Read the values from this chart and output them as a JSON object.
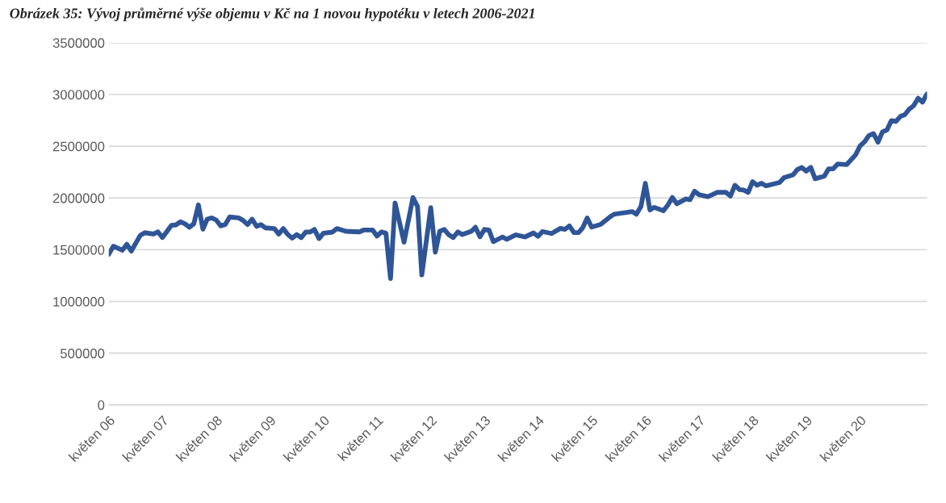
{
  "chart_data": {
    "type": "line",
    "title": "Obrázek 35: Vývoj průměrné výše objemu v Kč na 1 novou hypotéku v letech 2006-2021",
    "x": [
      "2006-05",
      "2006-06",
      "2006-08",
      "2006-09",
      "2006-10",
      "2006-12",
      "2007-01",
      "2007-03",
      "2007-04",
      "2007-05",
      "2007-07",
      "2007-08",
      "2007-09",
      "2007-10",
      "2007-11",
      "2007-12",
      "2008-01",
      "2008-02",
      "2008-03",
      "2008-04",
      "2008-05",
      "2008-06",
      "2008-07",
      "2008-08",
      "2008-10",
      "2008-11",
      "2008-12",
      "2009-01",
      "2009-02",
      "2009-03",
      "2009-04",
      "2009-06",
      "2009-07",
      "2009-08",
      "2009-09",
      "2009-10",
      "2009-11",
      "2009-12",
      "2010-01",
      "2010-02",
      "2010-03",
      "2010-04",
      "2010-05",
      "2010-07",
      "2010-08",
      "2010-09",
      "2010-10",
      "2011-01",
      "2011-02",
      "2011-04",
      "2011-05",
      "2011-06",
      "2011-07",
      "2011-08",
      "2011-09",
      "2011-11",
      "2012-01",
      "2012-02",
      "2012-03",
      "2012-05",
      "2012-06",
      "2012-07",
      "2012-08",
      "2012-09",
      "2012-10",
      "2012-11",
      "2012-12",
      "2013-02",
      "2013-03",
      "2013-04",
      "2013-05",
      "2013-06",
      "2013-07",
      "2013-09",
      "2013-10",
      "2013-12",
      "2014-02",
      "2014-04",
      "2014-05",
      "2014-06",
      "2014-08",
      "2014-10",
      "2014-11",
      "2014-12",
      "2015-01",
      "2015-02",
      "2015-03",
      "2015-04",
      "2015-05",
      "2015-07",
      "2015-09",
      "2015-10",
      "2016-02",
      "2016-03",
      "2016-04",
      "2016-05",
      "2016-06",
      "2016-07",
      "2016-09",
      "2016-10",
      "2016-11",
      "2016-12",
      "2017-02",
      "2017-03",
      "2017-04",
      "2017-05",
      "2017-07",
      "2017-09",
      "2017-11",
      "2017-12",
      "2018-01",
      "2018-02",
      "2018-03",
      "2018-04",
      "2018-05",
      "2018-06",
      "2018-07",
      "2018-08",
      "2018-11",
      "2018-12",
      "2019-02",
      "2019-03",
      "2019-04",
      "2019-05",
      "2019-06",
      "2019-07",
      "2019-09",
      "2019-10",
      "2019-11",
      "2019-12",
      "2020-02",
      "2020-04",
      "2020-05",
      "2020-06",
      "2020-07",
      "2020-08",
      "2020-09",
      "2020-10",
      "2020-11",
      "2020-12",
      "2021-01",
      "2021-02",
      "2021-03",
      "2021-04",
      "2021-05",
      "2021-06",
      "2021-07",
      "2021-08"
    ],
    "series": [
      {
        "color": "#2f5597",
        "values": [
          1456000,
          1534000,
          1495000,
          1552000,
          1487000,
          1638000,
          1664000,
          1651000,
          1672000,
          1617000,
          1735000,
          1740000,
          1769000,
          1751000,
          1717000,
          1751000,
          1933000,
          1698000,
          1795000,
          1808000,
          1787000,
          1730000,
          1743000,
          1816000,
          1808000,
          1782000,
          1743000,
          1795000,
          1725000,
          1743000,
          1711000,
          1704000,
          1651000,
          1704000,
          1646000,
          1612000,
          1646000,
          1617000,
          1670000,
          1672000,
          1696000,
          1607000,
          1659000,
          1670000,
          1704000,
          1691000,
          1678000,
          1672000,
          1691000,
          1691000,
          1631000,
          1672000,
          1659000,
          1221000,
          1952000,
          1573000,
          2004000,
          1918000,
          1255000,
          1907000,
          1476000,
          1678000,
          1696000,
          1644000,
          1617000,
          1672000,
          1646000,
          1678000,
          1717000,
          1625000,
          1696000,
          1691000,
          1578000,
          1623000,
          1601000,
          1643000,
          1623000,
          1662000,
          1629000,
          1676000,
          1656000,
          1706000,
          1697000,
          1730000,
          1665000,
          1665000,
          1711000,
          1807000,
          1719000,
          1744000,
          1815000,
          1843000,
          1868000,
          1843000,
          1917000,
          2142000,
          1884000,
          1909000,
          1876000,
          1931000,
          2005000,
          1944000,
          1991000,
          1983000,
          2065000,
          2032000,
          2013000,
          2054000,
          2054000,
          2018000,
          2123000,
          2081000,
          2076000,
          2054000,
          2158000,
          2123000,
          2142000,
          2117000,
          2150000,
          2197000,
          2224000,
          2273000,
          2295000,
          2260000,
          2295000,
          2186000,
          2210000,
          2282000,
          2282000,
          2328000,
          2323000,
          2416000,
          2501000,
          2542000,
          2603000,
          2622000,
          2539000,
          2638000,
          2657000,
          2748000,
          2740000,
          2789000,
          2803000,
          2858000,
          2891000,
          2964000,
          2926000,
          3006000
        ]
      }
    ],
    "xlim": [
      "2006-05",
      "2021-08"
    ],
    "xticks": [
      {
        "value": "2006-05",
        "label": "květen 06"
      },
      {
        "value": "2007-05",
        "label": "květen 07"
      },
      {
        "value": "2008-05",
        "label": "květen 08"
      },
      {
        "value": "2009-05",
        "label": "květen 09"
      },
      {
        "value": "2010-05",
        "label": "květen 10"
      },
      {
        "value": "2011-05",
        "label": "květen 11"
      },
      {
        "value": "2012-05",
        "label": "květen 12"
      },
      {
        "value": "2013-05",
        "label": "květen 13"
      },
      {
        "value": "2014-05",
        "label": "květen 14"
      },
      {
        "value": "2015-05",
        "label": "květen 15"
      },
      {
        "value": "2016-05",
        "label": "květen 16"
      },
      {
        "value": "2017-05",
        "label": "květen 17"
      },
      {
        "value": "2018-05",
        "label": "květen 18"
      },
      {
        "value": "2019-05",
        "label": "květen 19"
      },
      {
        "value": "2020-05",
        "label": "květen 20"
      }
    ],
    "ylim": [
      0,
      3500000
    ],
    "yticks": [
      0,
      500000,
      1000000,
      1500000,
      2000000,
      2500000,
      3000000,
      3500000
    ],
    "grid": "y",
    "marker": "none",
    "line_style": "solid"
  }
}
